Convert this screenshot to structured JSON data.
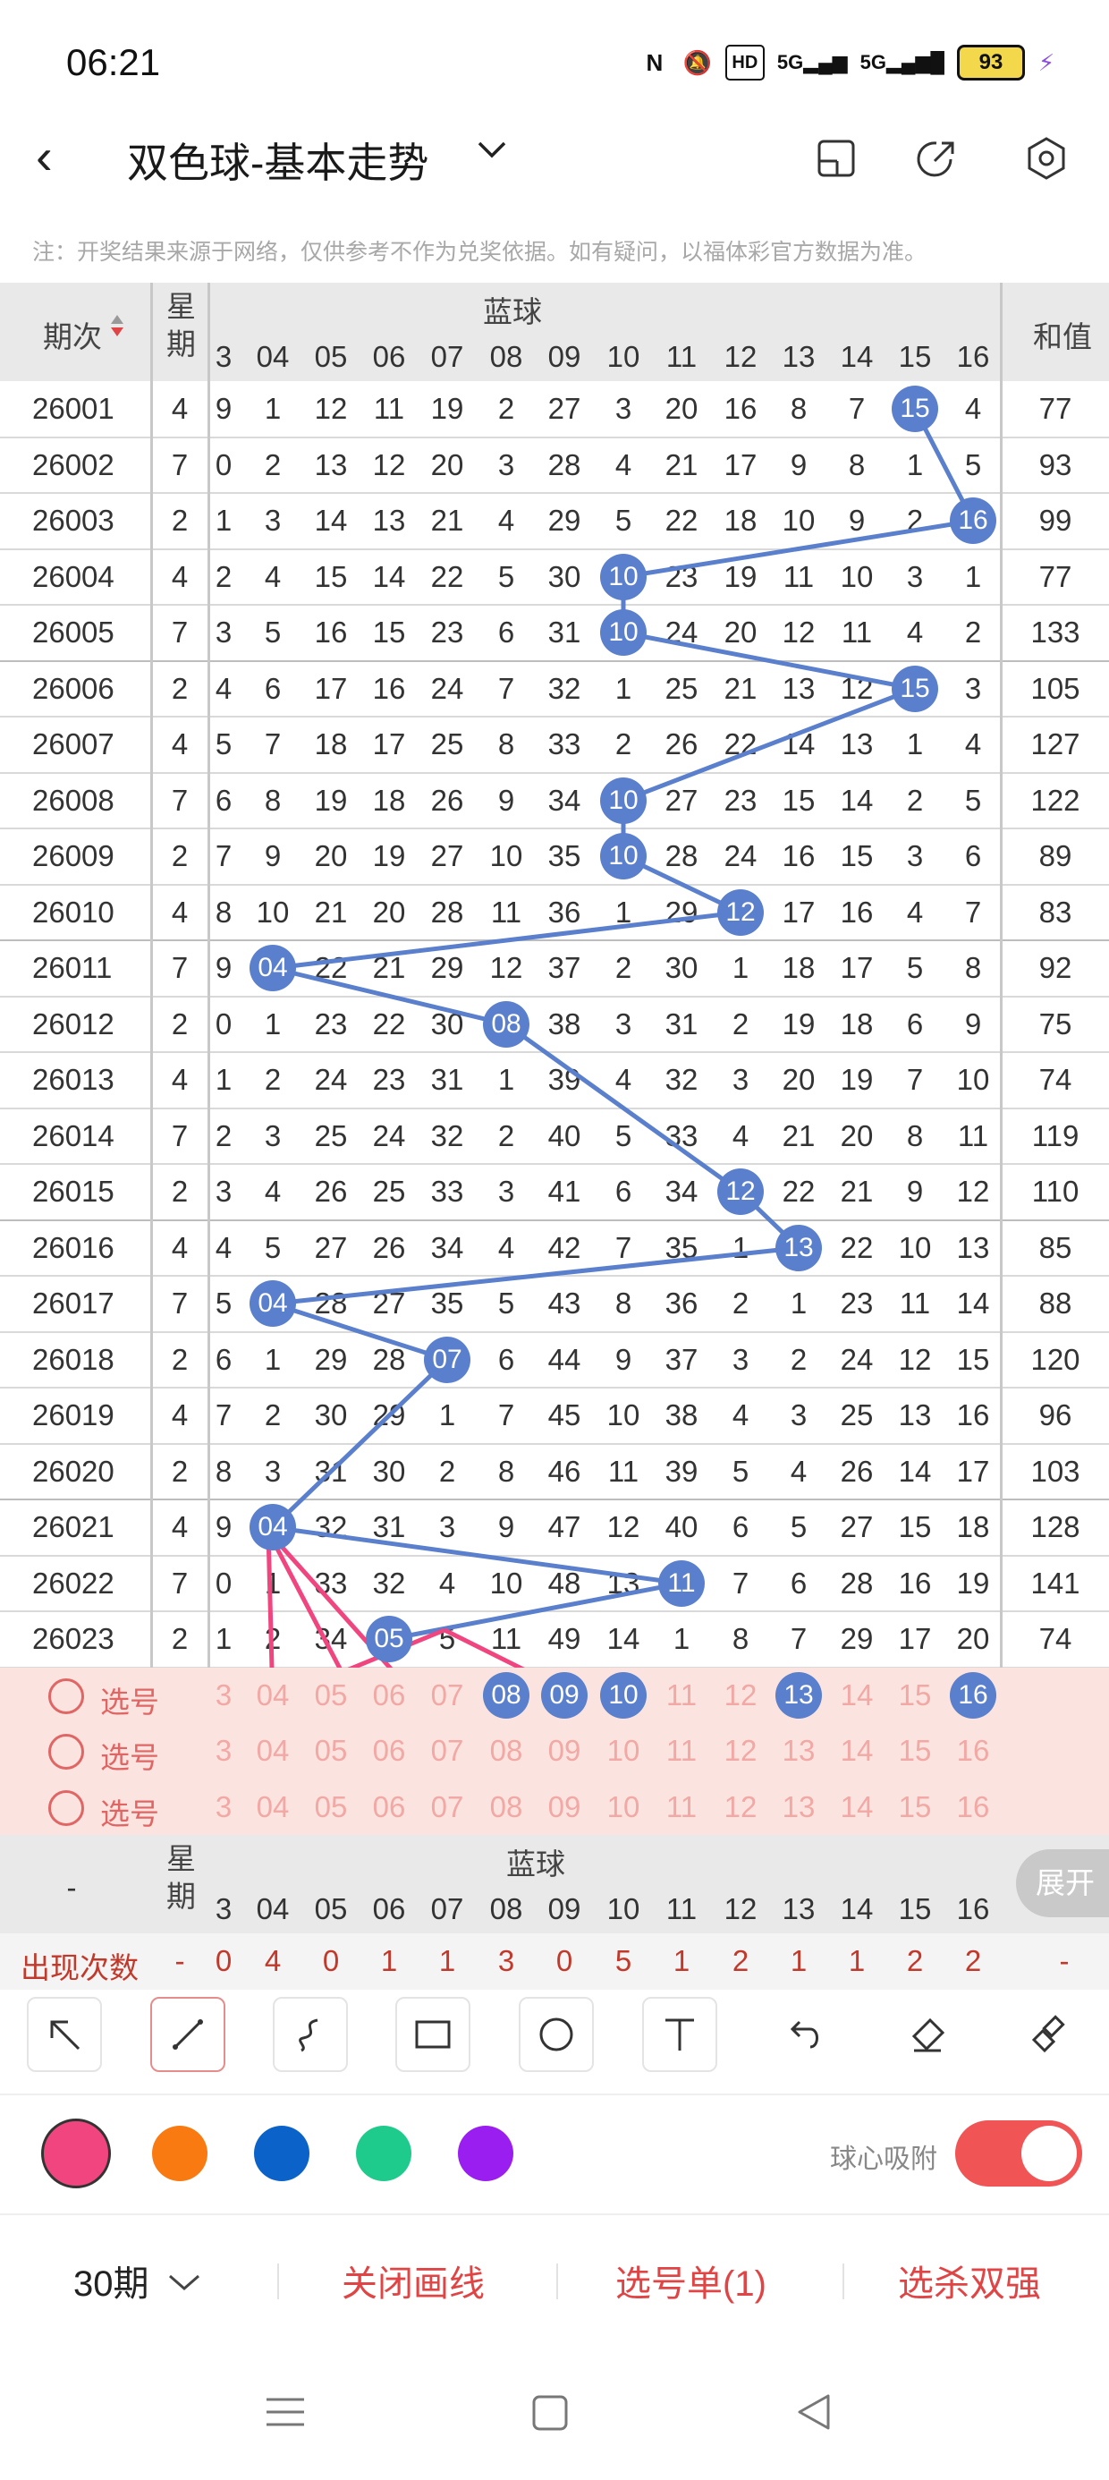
{
  "status": {
    "time": "06:21",
    "battery": "93",
    "icons": [
      "nfc-icon",
      "mute-icon",
      "hd-icon",
      "5g-signal-icon",
      "5g-signal-icon",
      "battery-icon",
      "charging-icon"
    ]
  },
  "header": {
    "title": "双色球-基本走势",
    "notice": "注：开奖结果来源于网络，仅供参考不作为兑奖依据。如有疑问，以福体彩官方数据为准。"
  },
  "table": {
    "issue_header": "期次",
    "week_header": "星期",
    "blue_header": "蓝球",
    "sum_header": "和值",
    "columns": [
      "3",
      "04",
      "05",
      "06",
      "07",
      "08",
      "09",
      "10",
      "11",
      "12",
      "13",
      "14",
      "15",
      "16"
    ],
    "rows": [
      {
        "issue": "26001",
        "week": "4",
        "cells": [
          "9",
          "1",
          "12",
          "11",
          "19",
          "2",
          "27",
          "3",
          "20",
          "16",
          "8",
          "7",
          "15",
          "4"
        ],
        "hit": 12,
        "sum": "77"
      },
      {
        "issue": "26002",
        "week": "7",
        "cells": [
          "0",
          "2",
          "13",
          "12",
          "20",
          "3",
          "28",
          "4",
          "21",
          "17",
          "9",
          "8",
          "1",
          "5"
        ],
        "hit": -1,
        "sum": "93"
      },
      {
        "issue": "26003",
        "week": "2",
        "cells": [
          "1",
          "3",
          "14",
          "13",
          "21",
          "4",
          "29",
          "5",
          "22",
          "18",
          "10",
          "9",
          "2",
          "16"
        ],
        "hit": 13,
        "sum": "99"
      },
      {
        "issue": "26004",
        "week": "4",
        "cells": [
          "2",
          "4",
          "15",
          "14",
          "22",
          "5",
          "30",
          "10",
          "23",
          "19",
          "11",
          "10",
          "3",
          "1"
        ],
        "hit": 7,
        "sum": "77"
      },
      {
        "issue": "26005",
        "week": "7",
        "cells": [
          "3",
          "5",
          "16",
          "15",
          "23",
          "6",
          "31",
          "10",
          "24",
          "20",
          "12",
          "11",
          "4",
          "2"
        ],
        "hit": 7,
        "sum": "133"
      },
      {
        "issue": "26006",
        "week": "2",
        "cells": [
          "4",
          "6",
          "17",
          "16",
          "24",
          "7",
          "32",
          "1",
          "25",
          "21",
          "13",
          "12",
          "15",
          "3"
        ],
        "hit": 12,
        "sum": "105"
      },
      {
        "issue": "26007",
        "week": "4",
        "cells": [
          "5",
          "7",
          "18",
          "17",
          "25",
          "8",
          "33",
          "2",
          "26",
          "22",
          "14",
          "13",
          "1",
          "4"
        ],
        "hit": -1,
        "sum": "127"
      },
      {
        "issue": "26008",
        "week": "7",
        "cells": [
          "6",
          "8",
          "19",
          "18",
          "26",
          "9",
          "34",
          "10",
          "27",
          "23",
          "15",
          "14",
          "2",
          "5"
        ],
        "hit": 7,
        "sum": "122"
      },
      {
        "issue": "26009",
        "week": "2",
        "cells": [
          "7",
          "9",
          "20",
          "19",
          "27",
          "10",
          "35",
          "10",
          "28",
          "24",
          "16",
          "15",
          "3",
          "6"
        ],
        "hit": 7,
        "sum": "89"
      },
      {
        "issue": "26010",
        "week": "4",
        "cells": [
          "8",
          "10",
          "21",
          "20",
          "28",
          "11",
          "36",
          "1",
          "29",
          "12",
          "17",
          "16",
          "4",
          "7"
        ],
        "hit": 9,
        "sum": "83"
      },
      {
        "issue": "26011",
        "week": "7",
        "cells": [
          "9",
          "04",
          "22",
          "21",
          "29",
          "12",
          "37",
          "2",
          "30",
          "1",
          "18",
          "17",
          "5",
          "8"
        ],
        "hit": 1,
        "sum": "92"
      },
      {
        "issue": "26012",
        "week": "2",
        "cells": [
          "0",
          "1",
          "23",
          "22",
          "30",
          "08",
          "38",
          "3",
          "31",
          "2",
          "19",
          "18",
          "6",
          "9"
        ],
        "hit": 5,
        "sum": "75"
      },
      {
        "issue": "26013",
        "week": "4",
        "cells": [
          "1",
          "2",
          "24",
          "23",
          "31",
          "1",
          "39",
          "4",
          "32",
          "3",
          "20",
          "19",
          "7",
          "10"
        ],
        "hit": -1,
        "sum": "74"
      },
      {
        "issue": "26014",
        "week": "7",
        "cells": [
          "2",
          "3",
          "25",
          "24",
          "32",
          "2",
          "40",
          "5",
          "33",
          "4",
          "21",
          "20",
          "8",
          "11"
        ],
        "hit": -1,
        "sum": "119"
      },
      {
        "issue": "26015",
        "week": "2",
        "cells": [
          "3",
          "4",
          "26",
          "25",
          "33",
          "3",
          "41",
          "6",
          "34",
          "12",
          "22",
          "21",
          "9",
          "12"
        ],
        "hit": 9,
        "sum": "110"
      },
      {
        "issue": "26016",
        "week": "4",
        "cells": [
          "4",
          "5",
          "27",
          "26",
          "34",
          "4",
          "42",
          "7",
          "35",
          "1",
          "13",
          "22",
          "10",
          "13"
        ],
        "hit": 10,
        "sum": "85"
      },
      {
        "issue": "26017",
        "week": "7",
        "cells": [
          "5",
          "04",
          "28",
          "27",
          "35",
          "5",
          "43",
          "8",
          "36",
          "2",
          "1",
          "23",
          "11",
          "14"
        ],
        "hit": 1,
        "sum": "88"
      },
      {
        "issue": "26018",
        "week": "2",
        "cells": [
          "6",
          "1",
          "29",
          "28",
          "07",
          "6",
          "44",
          "9",
          "37",
          "3",
          "2",
          "24",
          "12",
          "15"
        ],
        "hit": 4,
        "sum": "120"
      },
      {
        "issue": "26019",
        "week": "4",
        "cells": [
          "7",
          "2",
          "30",
          "29",
          "1",
          "7",
          "45",
          "10",
          "38",
          "4",
          "3",
          "25",
          "13",
          "16"
        ],
        "hit": -1,
        "sum": "96"
      },
      {
        "issue": "26020",
        "week": "2",
        "cells": [
          "8",
          "3",
          "31",
          "30",
          "2",
          "8",
          "46",
          "11",
          "39",
          "5",
          "4",
          "26",
          "14",
          "17"
        ],
        "hit": -1,
        "sum": "103"
      },
      {
        "issue": "26021",
        "week": "4",
        "cells": [
          "9",
          "04",
          "32",
          "31",
          "3",
          "9",
          "47",
          "12",
          "40",
          "6",
          "5",
          "27",
          "15",
          "18"
        ],
        "hit": 1,
        "sum": "128"
      },
      {
        "issue": "26022",
        "week": "7",
        "cells": [
          "0",
          "1",
          "33",
          "32",
          "4",
          "10",
          "48",
          "13",
          "11",
          "7",
          "6",
          "28",
          "16",
          "19"
        ],
        "hit": 8,
        "sum": "141"
      },
      {
        "issue": "26023",
        "week": "2",
        "cells": [
          "1",
          "2",
          "34",
          "05",
          "5",
          "11",
          "49",
          "14",
          "1",
          "8",
          "7",
          "29",
          "17",
          "20"
        ],
        "hit": 3,
        "sum": "74"
      }
    ],
    "pick_label": "选号",
    "pick_numbers": [
      "3",
      "04",
      "05",
      "06",
      "07",
      "08",
      "09",
      "10",
      "11",
      "12",
      "13",
      "14",
      "15",
      "16"
    ],
    "pick_selected": [
      5,
      6,
      7,
      10,
      13
    ],
    "footer_dash": "-",
    "expand_label": "展开",
    "count_label": "出现次数",
    "count_week": "-",
    "counts": [
      "0",
      "4",
      "0",
      "1",
      "1",
      "3",
      "0",
      "5",
      "1",
      "2",
      "1",
      "1",
      "2",
      "2"
    ],
    "count_sum": "-"
  },
  "toolbar": {
    "tools": [
      "select-arrow-icon",
      "line-icon",
      "curve-icon",
      "rectangle-icon",
      "circle-icon",
      "text-icon",
      "undo-icon",
      "eraser-icon",
      "clear-icon"
    ],
    "colors": [
      "#f0457f",
      "#f97a10",
      "#0b63c9",
      "#1fcb8c",
      "#9b1ef0"
    ],
    "snap_label": "球心吸附",
    "snap_on": true
  },
  "bottom": {
    "period": "30期",
    "close_lines": "关闭画线",
    "selection": "选号单(1)",
    "kill": "选杀双强"
  }
}
